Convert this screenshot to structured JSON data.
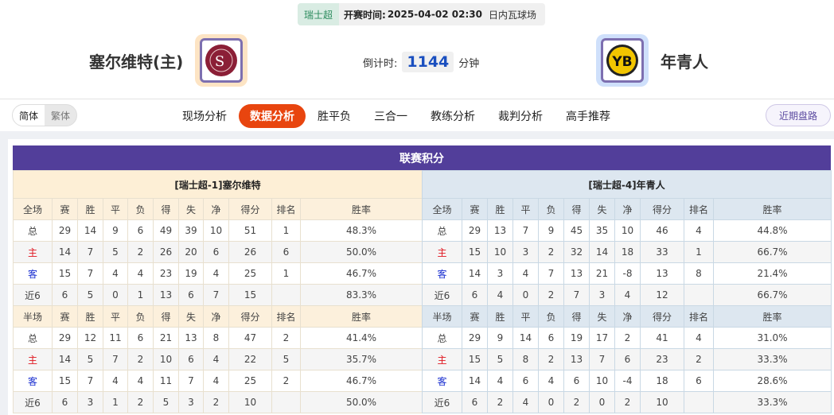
{
  "match": {
    "league": "瑞士超",
    "time_label": "开赛时间:",
    "time": "2025-04-02 02:30",
    "venue": "日内瓦球场"
  },
  "home": {
    "name": "塞尔维特(主)",
    "logo_text": "S FC"
  },
  "away": {
    "name": "年青人",
    "logo_text": "YB"
  },
  "countdown": {
    "label": "倒计时:",
    "value": "1144",
    "unit": "分钟"
  },
  "lang": {
    "simplified": "简体",
    "traditional": "繁体"
  },
  "tabs": [
    {
      "label": "现场分析"
    },
    {
      "label": "数据分析",
      "active": true
    },
    {
      "label": "胜平负"
    },
    {
      "label": "三合一"
    },
    {
      "label": "教练分析"
    },
    {
      "label": "裁判分析"
    },
    {
      "label": "高手推荐"
    }
  ],
  "recent_button": "近期盘路",
  "standings": {
    "title": "联赛积分",
    "columns": [
      "赛",
      "胜",
      "平",
      "负",
      "得",
      "失",
      "净",
      "得分",
      "排名",
      "胜率"
    ],
    "full_label": "全场",
    "half_label": "半场",
    "teams": [
      {
        "header": "[瑞士超-1]塞尔维特",
        "full": [
          [
            "总",
            "29",
            "14",
            "9",
            "6",
            "49",
            "39",
            "10",
            "51",
            "1",
            "48.3%"
          ],
          [
            "主",
            "14",
            "7",
            "5",
            "2",
            "26",
            "20",
            "6",
            "26",
            "6",
            "50.0%"
          ],
          [
            "客",
            "15",
            "7",
            "4",
            "4",
            "23",
            "19",
            "4",
            "25",
            "1",
            "46.7%"
          ],
          [
            "近6",
            "6",
            "5",
            "0",
            "1",
            "13",
            "6",
            "7",
            "15",
            "",
            "83.3%"
          ]
        ],
        "half": [
          [
            "总",
            "29",
            "12",
            "11",
            "6",
            "21",
            "13",
            "8",
            "47",
            "2",
            "41.4%"
          ],
          [
            "主",
            "14",
            "5",
            "7",
            "2",
            "10",
            "6",
            "4",
            "22",
            "5",
            "35.7%"
          ],
          [
            "客",
            "15",
            "7",
            "4",
            "4",
            "11",
            "7",
            "4",
            "25",
            "2",
            "46.7%"
          ],
          [
            "近6",
            "6",
            "3",
            "1",
            "2",
            "5",
            "3",
            "2",
            "10",
            "",
            "50.0%"
          ]
        ]
      },
      {
        "header": "[瑞士超-4]年青人",
        "full": [
          [
            "总",
            "29",
            "13",
            "7",
            "9",
            "45",
            "35",
            "10",
            "46",
            "4",
            "44.8%"
          ],
          [
            "主",
            "15",
            "10",
            "3",
            "2",
            "32",
            "14",
            "18",
            "33",
            "1",
            "66.7%"
          ],
          [
            "客",
            "14",
            "3",
            "4",
            "7",
            "13",
            "21",
            "-8",
            "13",
            "8",
            "21.4%"
          ],
          [
            "近6",
            "6",
            "4",
            "0",
            "2",
            "7",
            "3",
            "4",
            "12",
            "",
            "66.7%"
          ]
        ],
        "half": [
          [
            "总",
            "29",
            "9",
            "14",
            "6",
            "19",
            "17",
            "2",
            "41",
            "4",
            "31.0%"
          ],
          [
            "主",
            "15",
            "5",
            "8",
            "2",
            "13",
            "7",
            "6",
            "23",
            "2",
            "33.3%"
          ],
          [
            "客",
            "14",
            "4",
            "6",
            "4",
            "6",
            "10",
            "-4",
            "18",
            "6",
            "28.6%"
          ],
          [
            "近6",
            "6",
            "2",
            "4",
            "0",
            "2",
            "0",
            "2",
            "10",
            "",
            "33.3%"
          ]
        ]
      }
    ]
  },
  "colors": {
    "accent": "#e8450f",
    "title_bar": "#523e9a",
    "home_text": "#e0141e",
    "away_text": "#1a2fd0",
    "countdown": "#1a4fbf"
  }
}
